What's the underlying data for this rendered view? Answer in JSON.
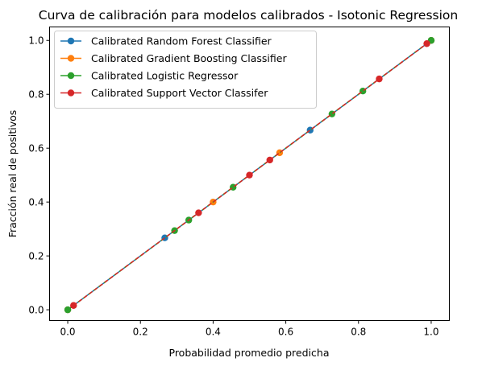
{
  "chart_data": {
    "type": "line",
    "title": "Curva de calibración para modelos calibrados - Isotonic Regression",
    "xlabel": "Probabilidad promedio predicha",
    "ylabel": "Fracción real de positivos",
    "xlim": [
      -0.05,
      1.05
    ],
    "ylim": [
      -0.04,
      1.05
    ],
    "xticks": [
      "0.0",
      "0.2",
      "0.4",
      "0.6",
      "0.8",
      "1.0"
    ],
    "yticks": [
      "0.0",
      "0.2",
      "0.4",
      "0.6",
      "0.8",
      "1.0"
    ],
    "grid": false,
    "legend_position": "top-left",
    "series": [
      {
        "name": "Calibrated Random Forest Classifier",
        "color": "#1f77b4",
        "x": [
          0.0,
          0.267,
          0.667,
          1.0
        ],
        "y": [
          0.0,
          0.267,
          0.667,
          1.0
        ]
      },
      {
        "name": "Calibrated Gradient Boosting Classifier",
        "color": "#ff7f0e",
        "x": [
          0.0,
          0.4,
          0.583,
          1.0
        ],
        "y": [
          0.0,
          0.4,
          0.583,
          1.0
        ]
      },
      {
        "name": "Calibrated Logistic Regressor",
        "color": "#2ca02c",
        "x": [
          0.0,
          0.294,
          0.333,
          0.455,
          0.727,
          0.812,
          1.0
        ],
        "y": [
          0.0,
          0.294,
          0.333,
          0.455,
          0.727,
          0.812,
          1.0
        ]
      },
      {
        "name": "Calibrated Support Vector Classifer",
        "color": "#d62728",
        "x": [
          0.016,
          0.36,
          0.5,
          0.556,
          0.857,
          0.988
        ],
        "y": [
          0.016,
          0.36,
          0.5,
          0.556,
          0.857,
          0.988
        ]
      }
    ]
  }
}
